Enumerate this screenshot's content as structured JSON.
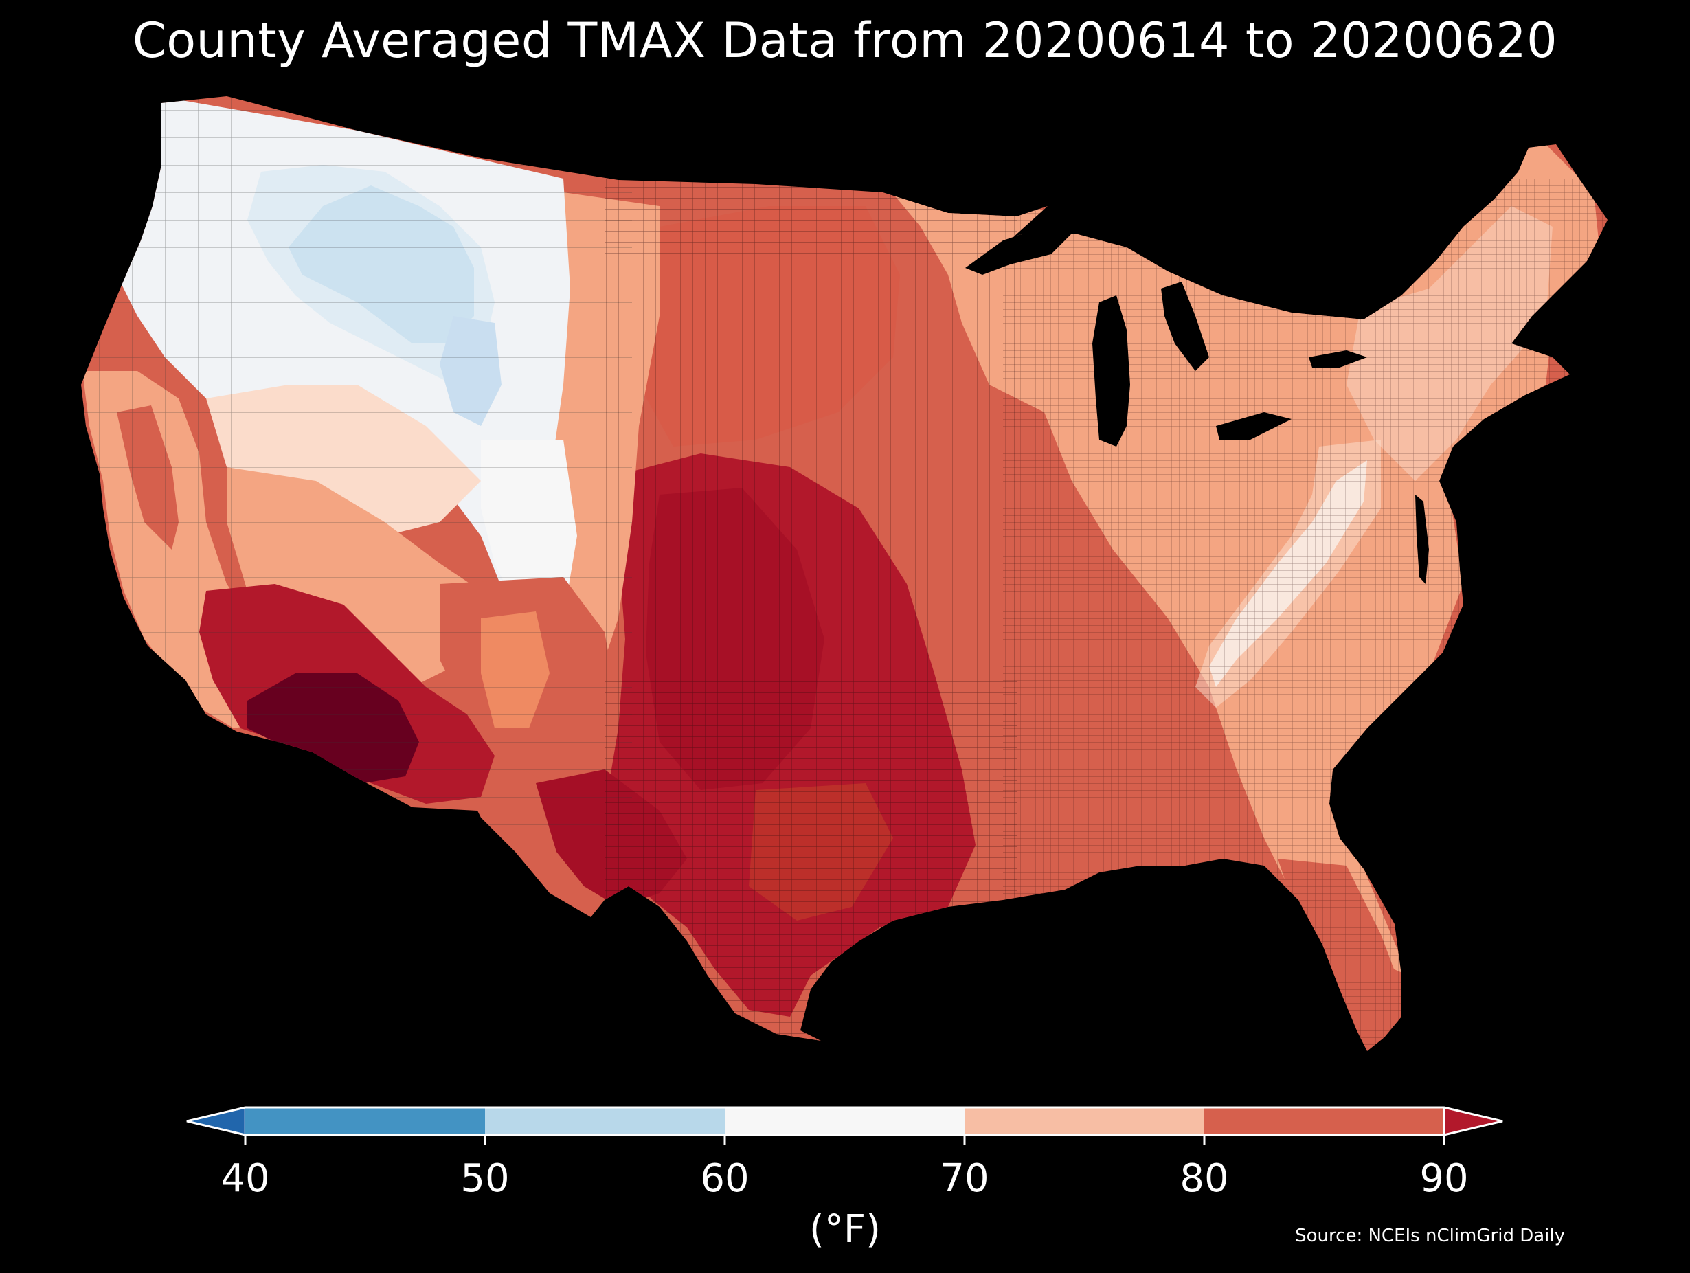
{
  "title": "County Averaged TMAX Data from 20200614 to 20200620",
  "map": {
    "region": "contiguous-united-states",
    "projection": "albers-conic-equal-area",
    "boundaries": "county",
    "background_color": "#000000",
    "border_color": "#1a1a1a"
  },
  "colorbar": {
    "label": "(°F)",
    "ticks": [
      "40",
      "50",
      "60",
      "70",
      "80",
      "90"
    ],
    "bins": [
      {
        "from": 40,
        "to": 50,
        "color": "#4393c3"
      },
      {
        "from": 50,
        "to": 60,
        "color": "#b8d8ea"
      },
      {
        "from": 60,
        "to": 70,
        "color": "#f7f7f7"
      },
      {
        "from": 70,
        "to": 80,
        "color": "#f7bea4"
      },
      {
        "from": 80,
        "to": 90,
        "color": "#d6604d"
      }
    ],
    "extend_low_color": "#2166ac",
    "extend_high_color": "#b2182b"
  },
  "regional_values": [
    {
      "region": "Arizona desert",
      "band": "above 90",
      "color": "#67001f"
    },
    {
      "region": "Southern Texas / Rio Grande",
      "band": "above 90",
      "color": "#a50f26"
    },
    {
      "region": "Southern Plains (Kansas, Oklahoma, West Texas)",
      "band": "above 90",
      "color": "#b2182b"
    },
    {
      "region": "Southeast and Gulf Coast",
      "band": "80-90",
      "color": "#d6604d"
    },
    {
      "region": "Northern Plains and Midwest",
      "band": "80-90",
      "color": "#d6604d"
    },
    {
      "region": "Northeast and Great Lakes",
      "band": "70-80",
      "color": "#f4a582"
    },
    {
      "region": "Appalachian ridge",
      "band": "60-70",
      "color": "#f7f7f7"
    },
    {
      "region": "Northern Rockies (Idaho, Montana, Wyoming)",
      "band": "50-60",
      "color": "#b8d8ea"
    },
    {
      "region": "Pacific Northwest and Great Basin",
      "band": "60-70",
      "color": "#f1f4f7"
    },
    {
      "region": "California coast and Sierra",
      "band": "70-80",
      "color": "#f4a582"
    }
  ],
  "source": "Source: NCEIs nClimGrid Daily"
}
